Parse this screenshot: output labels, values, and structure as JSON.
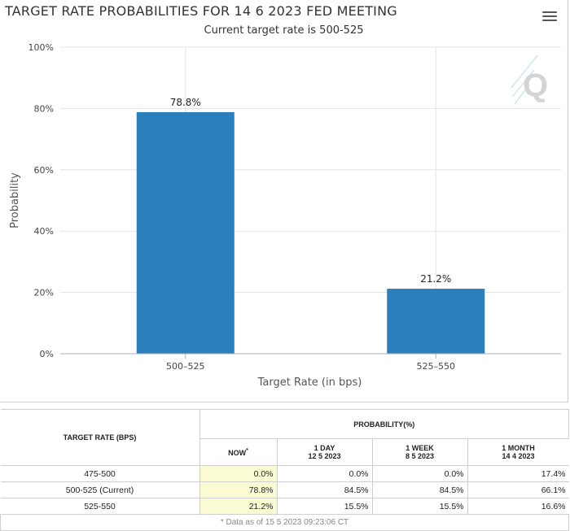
{
  "header": {
    "title": "TARGET RATE PROBABILITIES FOR 14 6 2023 FED MEETING",
    "subtitle": "Current target rate is 500-525",
    "menu_icon": "hamburger-menu-icon",
    "logo": "Q"
  },
  "chart_data": {
    "type": "bar",
    "title": "TARGET RATE PROBABILITIES FOR 14 6 2023 FED MEETING",
    "subtitle": "Current target rate is 500-525",
    "categories": [
      "500–525",
      "525–550"
    ],
    "values": [
      78.8,
      21.2
    ],
    "value_labels": [
      "78.8%",
      "21.2%"
    ],
    "xlabel": "Target Rate (in bps)",
    "ylabel": "Probability",
    "ylim": [
      0,
      100
    ],
    "yticks": [
      "0%",
      "20%",
      "40%",
      "60%",
      "80%",
      "100%"
    ],
    "grid": true,
    "bar_color": "#2b7fbc"
  },
  "table": {
    "col_rate": "TARGET RATE (BPS)",
    "col_prob": "PROBABILITY(%)",
    "col_now": "NOW",
    "col_now_mark": "*",
    "col_1day": "1 DAY",
    "col_1day_date": "12 5 2023",
    "col_1week": "1 WEEK",
    "col_1week_date": "8 5 2023",
    "col_1month": "1 MONTH",
    "col_1month_date": "14 4 2023",
    "rows": [
      {
        "rate": "475-500",
        "now": "0.0%",
        "day": "0.0%",
        "week": "0.0%",
        "month": "17.4%"
      },
      {
        "rate": "500-525 (Current)",
        "now": "78.8%",
        "day": "84.5%",
        "week": "84.5%",
        "month": "66.1%"
      },
      {
        "rate": "525-550",
        "now": "21.2%",
        "day": "15.5%",
        "week": "15.5%",
        "month": "16.6%"
      }
    ],
    "footnote": "* Data as of 15 5 2023 09:23:06 CT"
  }
}
